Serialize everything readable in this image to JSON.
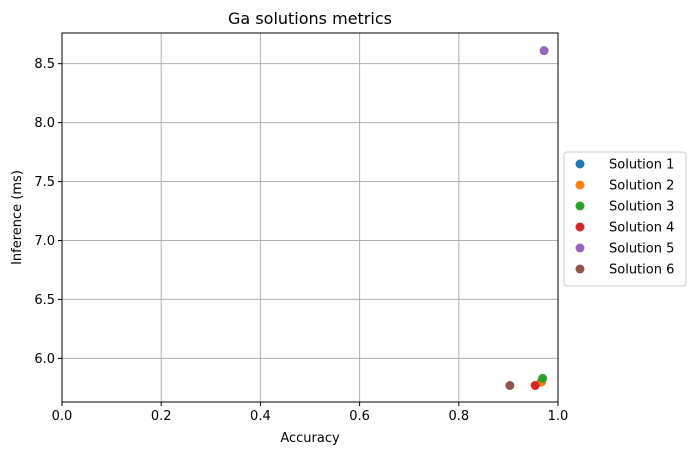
{
  "chart_data": {
    "type": "scatter",
    "title": "Ga solutions metrics",
    "xlabel": "Accuracy",
    "ylabel": "Inference (ms)",
    "xlim": [
      0.0,
      1.0
    ],
    "ylim": [
      5.63,
      8.76
    ],
    "grid": true,
    "legend_position": "center-right outside",
    "x_ticks": [
      {
        "value": 0.0,
        "label": "0.0"
      },
      {
        "value": 0.2,
        "label": "0.2"
      },
      {
        "value": 0.4,
        "label": "0.4"
      },
      {
        "value": 0.6,
        "label": "0.6"
      },
      {
        "value": 0.8,
        "label": "0.8"
      },
      {
        "value": 1.0,
        "label": "1.0"
      }
    ],
    "y_ticks": [
      {
        "value": 6.0,
        "label": "6.0"
      },
      {
        "value": 6.5,
        "label": "6.5"
      },
      {
        "value": 7.0,
        "label": "7.0"
      },
      {
        "value": 7.5,
        "label": "7.5"
      },
      {
        "value": 8.0,
        "label": "8.0"
      },
      {
        "value": 8.5,
        "label": "8.5"
      }
    ],
    "series": [
      {
        "name": "Solution 1",
        "color": "#1f77b4",
        "x": 0.966,
        "y": 5.8
      },
      {
        "name": "Solution 2",
        "color": "#ff7f0e",
        "x": 0.967,
        "y": 5.8
      },
      {
        "name": "Solution 3",
        "color": "#2ca02c",
        "x": 0.969,
        "y": 5.83
      },
      {
        "name": "Solution 4",
        "color": "#d62728",
        "x": 0.954,
        "y": 5.77
      },
      {
        "name": "Solution 5",
        "color": "#9467bd",
        "x": 0.972,
        "y": 8.61
      },
      {
        "name": "Solution 6",
        "color": "#8c564b",
        "x": 0.903,
        "y": 5.77
      }
    ]
  }
}
